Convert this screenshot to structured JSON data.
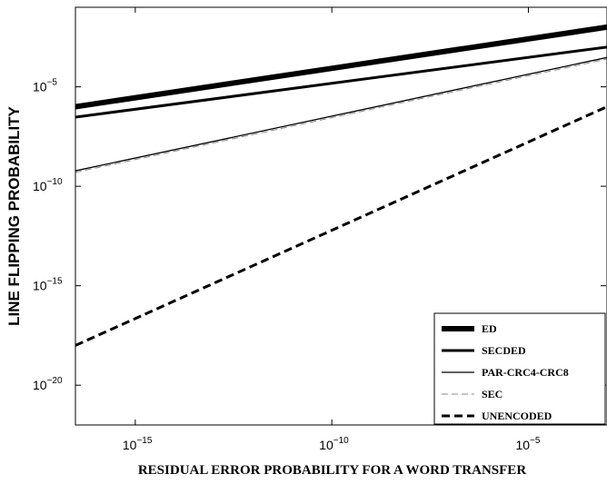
{
  "chart_data": {
    "type": "line",
    "xlabel": "RESIDUAL ERROR PROBABILITY FOR A WORD TRANSFER",
    "ylabel": "LINE FLIPPING PROBABILITY",
    "x_scale": "log",
    "y_scale": "log",
    "xlim": [
      3e-17,
      0.001
    ],
    "ylim": [
      1e-22,
      0.1
    ],
    "xticks": [
      {
        "base": "10",
        "exp": "−15",
        "value": 1e-15
      },
      {
        "base": "10",
        "exp": "−10",
        "value": 1e-10
      },
      {
        "base": "10",
        "exp": "−5",
        "value": 1e-05
      }
    ],
    "yticks": [
      {
        "base": "10",
        "exp": "−5",
        "value": 1e-05
      },
      {
        "base": "10",
        "exp": "−10",
        "value": 1e-10
      },
      {
        "base": "10",
        "exp": "−15",
        "value": 1e-15
      },
      {
        "base": "10",
        "exp": "−20",
        "value": 1e-20
      }
    ],
    "grid": false,
    "legend_position": "bottom-right",
    "series": [
      {
        "name": "ED",
        "x": [
          3e-17,
          0.001
        ],
        "y": [
          1e-06,
          0.01
        ],
        "stroke_width": 6,
        "dash": "",
        "color": "#000000"
      },
      {
        "name": "SECDED",
        "x": [
          3e-17,
          0.001
        ],
        "y": [
          3e-07,
          0.001
        ],
        "stroke_width": 3,
        "dash": "",
        "color": "#000000"
      },
      {
        "name": "PAR-CRC4-CRC8",
        "x": [
          3e-17,
          0.001
        ],
        "y": [
          6e-10,
          0.0003
        ],
        "stroke_width": 1.3,
        "dash": "",
        "color": "#000000"
      },
      {
        "name": "SEC",
        "x": [
          3e-17,
          0.001
        ],
        "y": [
          5e-10,
          0.00025
        ],
        "stroke_width": 1,
        "dash": "7 4",
        "color": "#888888"
      },
      {
        "name": "UNENCODED",
        "x": [
          3e-17,
          0.001
        ],
        "y": [
          1e-18,
          1e-06
        ],
        "stroke_width": 3,
        "dash": "9 5",
        "color": "#000000"
      }
    ]
  }
}
